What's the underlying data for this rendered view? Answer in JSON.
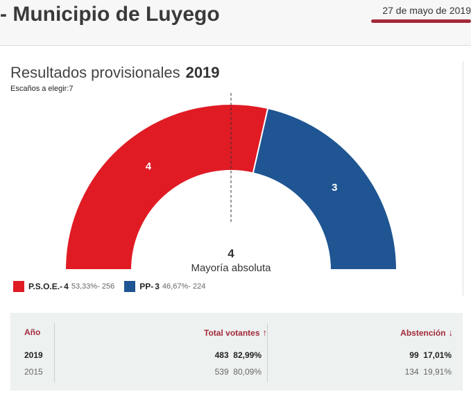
{
  "header": {
    "title": "- Municipio de Luyego",
    "date": "27 de mayo de 2019"
  },
  "results": {
    "label": "Resultados provisionales",
    "year": "2019",
    "seats_label": "Escaños a elegir:7"
  },
  "colors": {
    "psoe": "#e01b24",
    "pp": "#1f5592",
    "accent": "#a32a3b"
  },
  "chart_data": {
    "type": "pie",
    "title": "Resultados provisionales 2019",
    "total_seats": 7,
    "majority": 4,
    "majority_label": "Mayoría absoluta",
    "series": [
      {
        "name": "P.S.O.E.",
        "seats": 4,
        "percent": "53,33%",
        "votes": 256,
        "color": "#e01b24"
      },
      {
        "name": "PP",
        "seats": 3,
        "percent": "46,67%",
        "votes": 224,
        "color": "#1f5592"
      }
    ]
  },
  "legend": [
    {
      "name": "P.S.O.E.-",
      "seats": "4",
      "detail": "53,33%- 256"
    },
    {
      "name": "PP-",
      "seats": "3",
      "detail": "46,67%- 224"
    }
  ],
  "table": {
    "headers": {
      "year": "Año",
      "voters": "Total votantes",
      "voters_arrow": "↑",
      "abstention": "Abstención",
      "abstention_arrow": "↓"
    },
    "rows": [
      {
        "year": "2019",
        "voters": "483",
        "voters_pct": "82,99%",
        "abstention": "99",
        "abstention_pct": "17,01%"
      },
      {
        "year": "2015",
        "voters": "539",
        "voters_pct": "80,09%",
        "abstention": "134",
        "abstention_pct": "19,91%"
      }
    ]
  }
}
